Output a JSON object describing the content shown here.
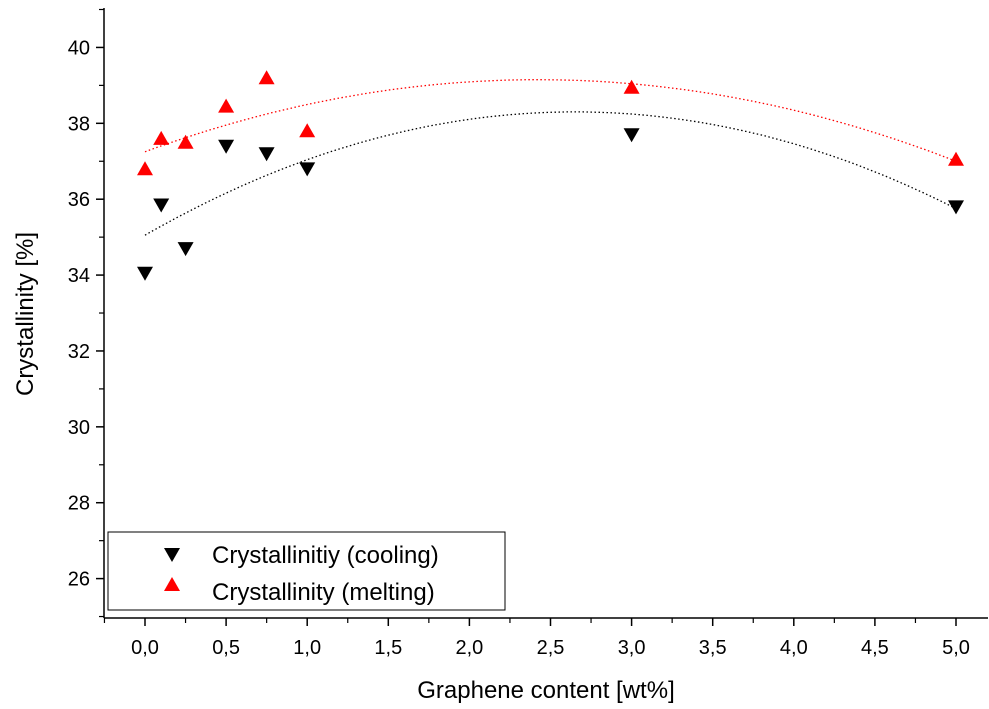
{
  "chart_data": {
    "type": "scatter",
    "xlabel": "Graphene content [wt%]",
    "ylabel": "Crystallinity [%]",
    "xlim": [
      -0.25,
      5.2
    ],
    "ylim": [
      25,
      41
    ],
    "x_ticks": [
      0.0,
      0.5,
      1.0,
      1.5,
      2.0,
      2.5,
      3.0,
      3.5,
      4.0,
      4.5,
      5.0
    ],
    "x_tick_labels": [
      "0,0",
      "0,5",
      "1,0",
      "1,5",
      "2,0",
      "2,5",
      "3,0",
      "3,5",
      "4,0",
      "4,5",
      "5,0"
    ],
    "y_ticks": [
      26,
      28,
      30,
      32,
      34,
      36,
      38,
      40
    ],
    "y_tick_labels": [
      "26",
      "28",
      "30",
      "32",
      "34",
      "36",
      "38",
      "40"
    ],
    "grid": false,
    "legend_position": "bottom-left",
    "series": [
      {
        "name": "Crystallinitiy (cooling)",
        "marker": "triangle-down",
        "color": "#000000",
        "x": [
          0.0,
          0.1,
          0.25,
          0.5,
          0.75,
          1.0,
          3.0,
          5.0
        ],
        "y": [
          34.05,
          35.85,
          34.7,
          37.4,
          37.2,
          36.8,
          37.7,
          35.8
        ],
        "trend": {
          "type": "quadratic",
          "style": "dotted",
          "x_range": [
            0.0,
            5.0
          ],
          "points": [
            [
              0.0,
              35.05
            ],
            [
              2.6,
              38.3
            ],
            [
              5.0,
              35.75
            ]
          ]
        }
      },
      {
        "name": "Crystallinity (melting)",
        "marker": "triangle-up",
        "color": "#ff0000",
        "x": [
          0.0,
          0.1,
          0.25,
          0.5,
          0.75,
          1.0,
          3.0,
          5.0
        ],
        "y": [
          36.8,
          37.6,
          37.5,
          38.45,
          39.2,
          37.8,
          38.95,
          37.05
        ],
        "trend": {
          "type": "quadratic",
          "style": "dotted",
          "x_range": [
            0.0,
            5.0
          ],
          "points": [
            [
              0.0,
              37.25
            ],
            [
              2.4,
              39.15
            ],
            [
              5.0,
              37.0
            ]
          ]
        }
      }
    ]
  }
}
